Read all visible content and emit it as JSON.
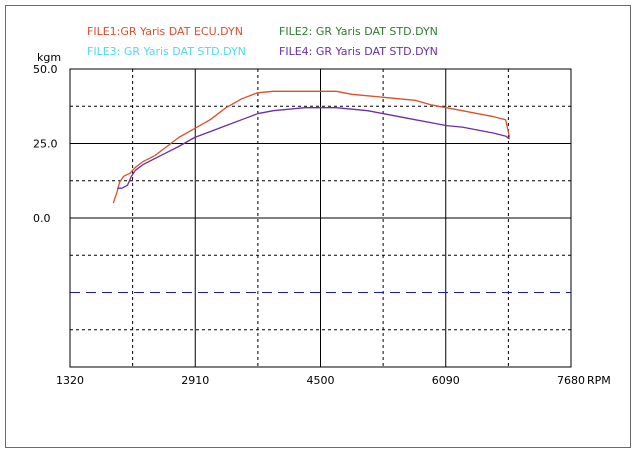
{
  "chart_data": {
    "type": "line",
    "x_unit": "RPM",
    "y_unit": "kgm",
    "x_ticks": [
      1320,
      2910,
      4500,
      6090,
      7680
    ],
    "y_ticks": [
      50.0,
      25.0,
      0.0
    ],
    "y_tick_labels": [
      "50.0",
      "25.0",
      "0.0"
    ],
    "xlim": [
      1320,
      7680
    ],
    "ylim": [
      -50,
      50
    ],
    "grid": true,
    "reference_line": {
      "y": -25,
      "style": "dashed",
      "color": "#1c1cb4"
    },
    "legend": [
      {
        "label": "FILE1:GR  Yaris  DAT    ECU.DYN",
        "color": "#d8502e"
      },
      {
        "label": "FILE2:  GR  Yaris  DAT  STD.DYN",
        "color": "#2e7d2e"
      },
      {
        "label": "FILE3:  GR  Yaris  DAT  STD.DYN",
        "color": "#4fd8f0"
      },
      {
        "label": "FILE4:  GR  Yaris  DAT  STD.DYN",
        "color": "#6a2ea8"
      }
    ],
    "series": [
      {
        "color": "#d8502e",
        "x": [
          1870,
          1920,
          1950,
          2000,
          2080,
          2150,
          2250,
          2400,
          2550,
          2700,
          2900,
          3100,
          3300,
          3500,
          3700,
          3900,
          4100,
          4300,
          4500,
          4700,
          4900,
          5100,
          5300,
          5500,
          5700,
          5900,
          6100,
          6300,
          6500,
          6700,
          6850,
          6900
        ],
        "y": [
          5,
          9,
          12,
          14,
          15,
          17,
          19,
          21,
          24,
          27,
          30,
          33,
          37,
          40,
          42,
          42.5,
          42.5,
          42.5,
          42.5,
          42.5,
          41.5,
          41,
          40.5,
          40,
          39.5,
          38,
          37,
          36,
          35,
          34,
          33,
          27
        ]
      },
      {
        "color": "#6a2ea8",
        "x": [
          1920,
          1980,
          2050,
          2100,
          2150,
          2250,
          2400,
          2550,
          2700,
          2900,
          3100,
          3300,
          3500,
          3700,
          3900,
          4100,
          4300,
          4500,
          4700,
          4900,
          5100,
          5300,
          5500,
          5700,
          5900,
          6100,
          6300,
          6500,
          6700,
          6850,
          6900
        ],
        "y": [
          10,
          10,
          11,
          14,
          16,
          18,
          20,
          22,
          24,
          27,
          29,
          31,
          33,
          35,
          36,
          36.5,
          37,
          37,
          37,
          36.5,
          36,
          35,
          34,
          33,
          32,
          31,
          30.5,
          29.5,
          28.5,
          27.5,
          26.5
        ]
      }
    ]
  }
}
